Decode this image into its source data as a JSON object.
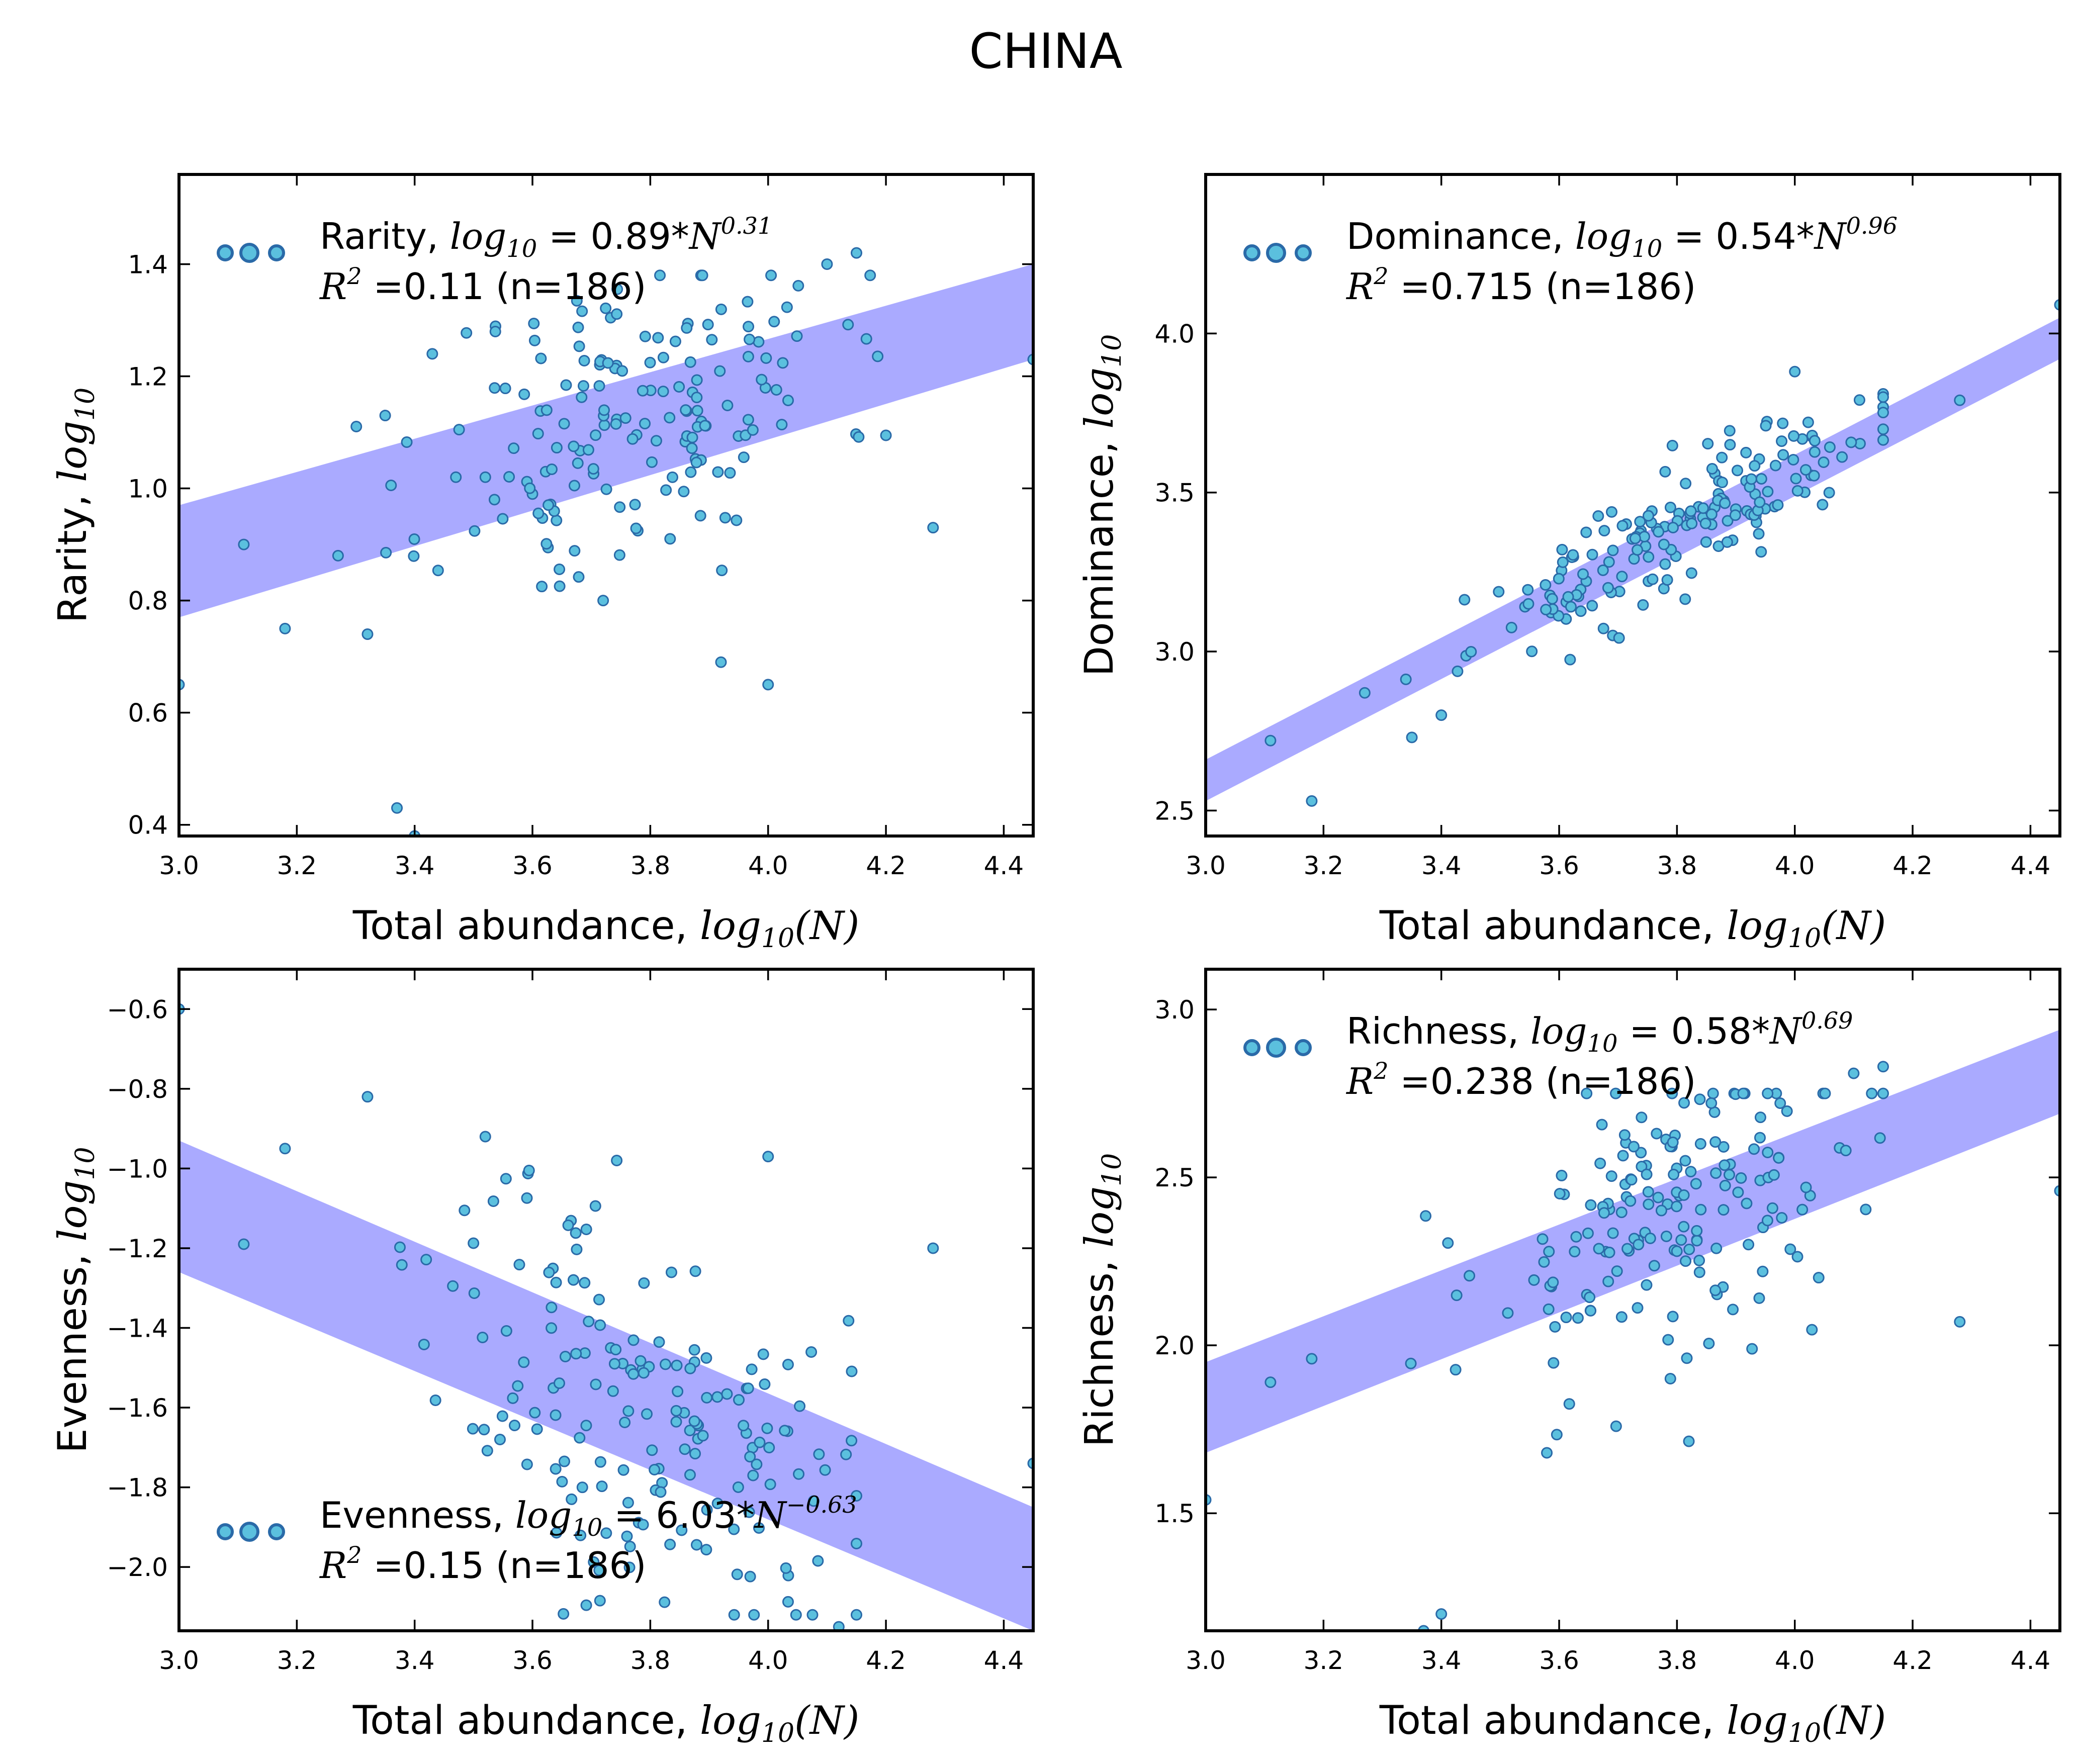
{
  "figure": {
    "title": "CHINA"
  },
  "chart_data": [
    {
      "type": "scatter",
      "panel": "top-left",
      "xlabel": "Total abundance, log10(N)",
      "ylabel": "Rarity, log10",
      "xlim": [
        3.0,
        4.45
      ],
      "ylim": [
        0.38,
        1.56
      ],
      "xticks": [
        3.0,
        3.2,
        3.4,
        3.6,
        3.8,
        4.0,
        4.2,
        4.4
      ],
      "yticks": [
        0.4,
        0.6,
        0.8,
        1.0,
        1.2,
        1.4
      ],
      "ytick_labels": [
        "0.4",
        "0.6",
        "0.8",
        "1.0",
        "1.2",
        "1.4"
      ],
      "legend_position": "top-left",
      "legend": {
        "metric": "Rarity",
        "coef": "0.89",
        "exponent": "0.31",
        "r2": "0.11",
        "n": "186"
      },
      "fit_band": {
        "x": [
          3.0,
          4.45
        ],
        "upper": [
          0.97,
          1.4
        ],
        "lower": [
          0.77,
          1.23
        ]
      },
      "seed": 11,
      "points": [
        [
          3.0,
          0.65
        ],
        [
          3.11,
          0.9
        ],
        [
          3.18,
          0.75
        ],
        [
          3.37,
          0.43
        ],
        [
          3.4,
          0.38
        ],
        [
          3.27,
          0.88
        ],
        [
          3.32,
          0.74
        ],
        [
          4.28,
          0.93
        ],
        [
          4.45,
          1.23
        ],
        [
          4.15,
          1.42
        ],
        [
          4.1,
          1.4
        ],
        [
          3.92,
          0.69
        ],
        [
          4.0,
          0.65
        ],
        [
          3.52,
          1.02
        ],
        [
          3.47,
          1.02
        ],
        [
          3.35,
          1.13
        ],
        [
          3.43,
          1.24
        ],
        [
          3.6,
          0.99
        ],
        [
          3.72,
          0.8
        ]
      ],
      "cloud": {
        "count": 167,
        "x_mean": 3.78,
        "x_sd": 0.17,
        "slope": 0.31,
        "intercept": -0.046,
        "y_sd": 0.15,
        "x_range": [
          3.3,
          4.2
        ],
        "y_range": [
          0.72,
          1.38
        ]
      }
    },
    {
      "type": "scatter",
      "panel": "top-right",
      "xlabel": "Total abundance, log10(N)",
      "ylabel": "Dominance, log10",
      "xlim": [
        3.0,
        4.45
      ],
      "ylim": [
        2.42,
        4.5
      ],
      "xticks": [
        3.0,
        3.2,
        3.4,
        3.6,
        3.8,
        4.0,
        4.2,
        4.4
      ],
      "yticks": [
        2.5,
        3.0,
        3.5,
        4.0
      ],
      "ytick_labels": [
        "2.5",
        "3.0",
        "3.5",
        "4.0"
      ],
      "legend_position": "top-left",
      "legend": {
        "metric": "Dominance",
        "coef": "0.54",
        "exponent": "0.96",
        "r2": "0.715",
        "n": "186"
      },
      "fit_band": {
        "x": [
          3.0,
          4.45
        ],
        "upper": [
          2.66,
          4.05
        ],
        "lower": [
          2.53,
          3.92
        ]
      },
      "seed": 23,
      "points": [
        [
          3.11,
          2.72
        ],
        [
          3.18,
          2.53
        ],
        [
          3.27,
          2.87
        ],
        [
          4.28,
          3.79
        ],
        [
          4.45,
          4.09
        ],
        [
          4.0,
          3.88
        ],
        [
          4.15,
          3.81
        ],
        [
          3.35,
          2.73
        ],
        [
          3.4,
          2.8
        ]
      ],
      "cloud": {
        "count": 177,
        "x_mean": 3.8,
        "x_sd": 0.17,
        "slope": 0.96,
        "intercept": -0.27,
        "y_sd": 0.09,
        "x_range": [
          3.32,
          4.15
        ],
        "y_range": [
          2.9,
          3.8
        ]
      }
    },
    {
      "type": "scatter",
      "panel": "bottom-left",
      "xlabel": "Total abundance, log10(N)",
      "ylabel": "Evenness, log10",
      "xlim": [
        3.0,
        4.45
      ],
      "ylim": [
        -2.16,
        -0.5
      ],
      "xticks": [
        3.0,
        3.2,
        3.4,
        3.6,
        3.8,
        4.0,
        4.2,
        4.4
      ],
      "yticks": [
        -2.0,
        -1.8,
        -1.6,
        -1.4,
        -1.2,
        -1.0,
        -0.8,
        -0.6
      ],
      "ytick_labels": [
        "−2.0",
        "−1.8",
        "−1.6",
        "−1.4",
        "−1.2",
        "−1.0",
        "−0.8",
        "−0.6"
      ],
      "legend_position": "bottom-left",
      "legend": {
        "metric": "Evenness",
        "coef": "6.03",
        "exponent": "−0.63",
        "r2": "0.15",
        "n": "186"
      },
      "fit_band": {
        "x": [
          3.0,
          4.45
        ],
        "upper": [
          -0.93,
          -1.85
        ],
        "lower": [
          -1.26,
          -2.16
        ]
      },
      "seed": 37,
      "points": [
        [
          3.0,
          -0.6
        ],
        [
          3.11,
          -1.19
        ],
        [
          3.18,
          -0.95
        ],
        [
          3.32,
          -0.82
        ],
        [
          4.28,
          -1.2
        ],
        [
          4.45,
          -1.74
        ],
        [
          4.0,
          -0.97
        ],
        [
          3.52,
          -0.92
        ],
        [
          4.12,
          -2.15
        ]
      ],
      "cloud": {
        "count": 177,
        "x_mean": 3.78,
        "x_sd": 0.17,
        "slope": -0.63,
        "intercept": 0.78,
        "y_sd": 0.25,
        "x_range": [
          3.25,
          4.15
        ],
        "y_range": [
          -2.12,
          -0.98
        ]
      }
    },
    {
      "type": "scatter",
      "panel": "bottom-right",
      "xlabel": "Total abundance, log10(N)",
      "ylabel": "Richness, log10",
      "xlim": [
        3.0,
        4.45
      ],
      "ylim": [
        1.15,
        3.12
      ],
      "xticks": [
        3.0,
        3.2,
        3.4,
        3.6,
        3.8,
        4.0,
        4.2,
        4.4
      ],
      "yticks": [
        1.5,
        2.0,
        2.5,
        3.0
      ],
      "ytick_labels": [
        "1.5",
        "2.0",
        "2.5",
        "3.0"
      ],
      "legend_position": "top-left",
      "legend": {
        "metric": "Richness",
        "coef": "0.58",
        "exponent": "0.69",
        "r2": "0.238",
        "n": "186"
      },
      "fit_band": {
        "x": [
          3.0,
          4.45
        ],
        "upper": [
          1.95,
          2.94
        ],
        "lower": [
          1.68,
          2.69
        ]
      },
      "seed": 53,
      "points": [
        [
          3.0,
          1.54
        ],
        [
          3.11,
          1.89
        ],
        [
          3.18,
          1.96
        ],
        [
          3.4,
          1.2
        ],
        [
          3.37,
          1.15
        ],
        [
          4.28,
          2.07
        ],
        [
          4.45,
          2.46
        ],
        [
          4.15,
          2.83
        ],
        [
          4.1,
          2.81
        ]
      ],
      "cloud": {
        "count": 177,
        "x_mean": 3.8,
        "x_sd": 0.17,
        "slope": 0.69,
        "intercept": -0.24,
        "y_sd": 0.24,
        "x_range": [
          3.26,
          4.15
        ],
        "y_range": [
          1.68,
          2.75
        ]
      }
    }
  ]
}
